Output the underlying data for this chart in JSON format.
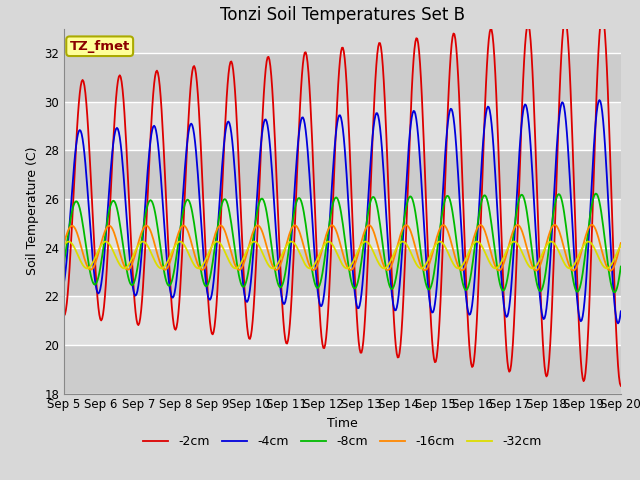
{
  "title": "Tonzi Soil Temperatures Set B",
  "xlabel": "Time",
  "ylabel": "Soil Temperature (C)",
  "ylim": [
    18,
    33
  ],
  "yticks": [
    18,
    20,
    22,
    24,
    26,
    28,
    30,
    32
  ],
  "xlim": [
    0,
    15
  ],
  "bg_color": "#d8d8d8",
  "plot_bg_color": "#d8d8d8",
  "grid_color": "#ffffff",
  "annotation_text": "TZ_fmet",
  "annotation_color": "#8b0000",
  "annotation_bg": "#ffff99",
  "annotation_border": "#aaaa00",
  "series": [
    {
      "label": "-2cm",
      "color": "#dd0000",
      "amplitude": 4.8,
      "phase": -1.57,
      "mean": 26.0,
      "grow": 0.12,
      "noise": 0.0
    },
    {
      "label": "-4cm",
      "color": "#0000dd",
      "amplitude": 3.3,
      "phase": -1.1,
      "mean": 25.5,
      "grow": 0.08,
      "noise": 0.0
    },
    {
      "label": "-8cm",
      "color": "#00bb00",
      "amplitude": 1.7,
      "phase": -0.5,
      "mean": 24.2,
      "grow": 0.04,
      "noise": 0.0
    },
    {
      "label": "-16cm",
      "color": "#ff8800",
      "amplitude": 0.9,
      "phase": 0.2,
      "mean": 24.0,
      "grow": 0.01,
      "noise": 0.0
    },
    {
      "label": "-32cm",
      "color": "#dddd00",
      "amplitude": 0.55,
      "phase": 0.8,
      "mean": 23.7,
      "grow": 0.0,
      "noise": 0.0
    }
  ],
  "n_points": 600,
  "cycles": 15,
  "xtick_positions": [
    0,
    1,
    2,
    3,
    4,
    5,
    6,
    7,
    8,
    9,
    10,
    11,
    12,
    13,
    14,
    15
  ],
  "xtick_labels": [
    "Sep 5",
    "Sep 6",
    "Sep 7",
    "Sep 8",
    "Sep 9",
    "Sep 10",
    "Sep 11",
    "Sep 12",
    "Sep 13",
    "Sep 14",
    "Sep 15",
    "Sep 16",
    "Sep 17",
    "Sep 18",
    "Sep 19",
    "Sep 20"
  ],
  "title_fontsize": 12,
  "label_fontsize": 9,
  "tick_fontsize": 8.5
}
